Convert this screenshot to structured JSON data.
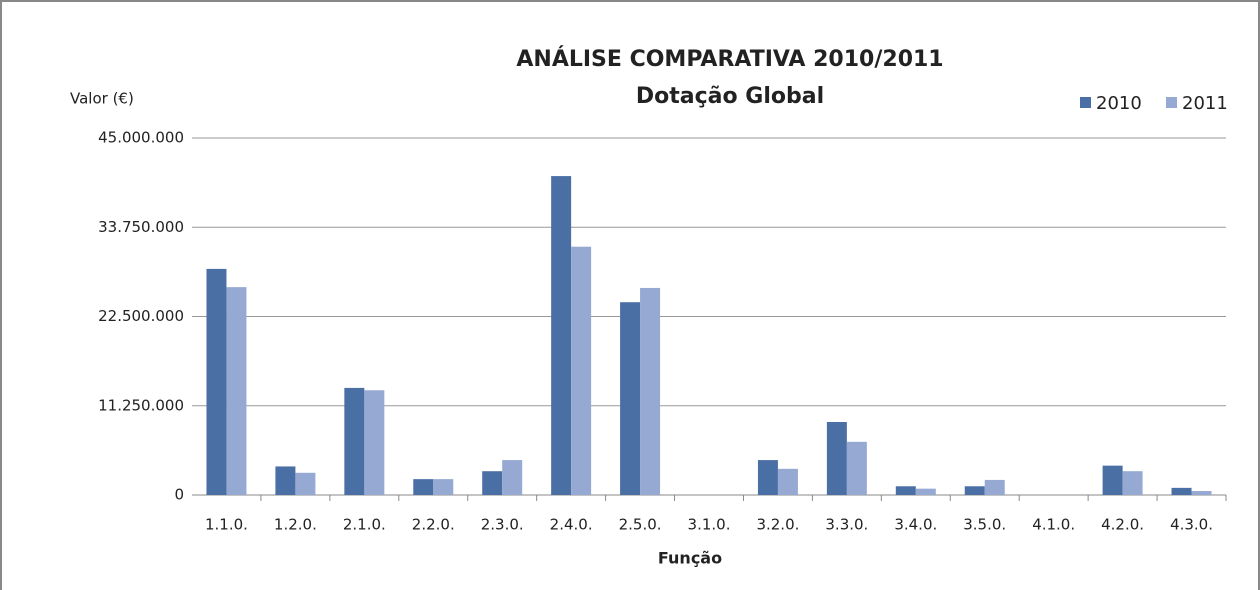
{
  "chart_data": {
    "type": "bar",
    "title": "ANÁLISE COMPARATIVA 2010/2011",
    "subtitle": "Dotação Global",
    "y_label": "Valor (€)",
    "x_label": "Função",
    "categories": [
      "1.1.0.",
      "1.2.0.",
      "2.1.0.",
      "2.2.0.",
      "2.3.0.",
      "2.4.0.",
      "2.5.0.",
      "3.1.0.",
      "3.2.0.",
      "3.3.0.",
      "3.4.0.",
      "3.5.0.",
      "4.1.0.",
      "4.2.0.",
      "4.3.0."
    ],
    "series": [
      {
        "name": "2010",
        "color": "#4a6fa5",
        "values": [
          28500000,
          3600000,
          13500000,
          2000000,
          3000000,
          40200000,
          24300000,
          0,
          4400000,
          9200000,
          1100000,
          1100000,
          0,
          3700000,
          900000
        ]
      },
      {
        "name": "2011",
        "color": "#95a9d3",
        "values": [
          26200000,
          2800000,
          13200000,
          2000000,
          4400000,
          31300000,
          26100000,
          0,
          3300000,
          6700000,
          800000,
          1900000,
          0,
          3000000,
          500000
        ]
      }
    ],
    "ylim": [
      0,
      45000000
    ],
    "yticks": [
      0,
      {
        "value": 11250000,
        "label": "11.250.000"
      },
      {
        "value": 22500000,
        "label": "22.500.000"
      },
      {
        "value": 33750000,
        "label": "33.750.000"
      },
      {
        "value": 45000000,
        "label": "45.000.000"
      }
    ],
    "grid": true,
    "legend": "top-right"
  }
}
